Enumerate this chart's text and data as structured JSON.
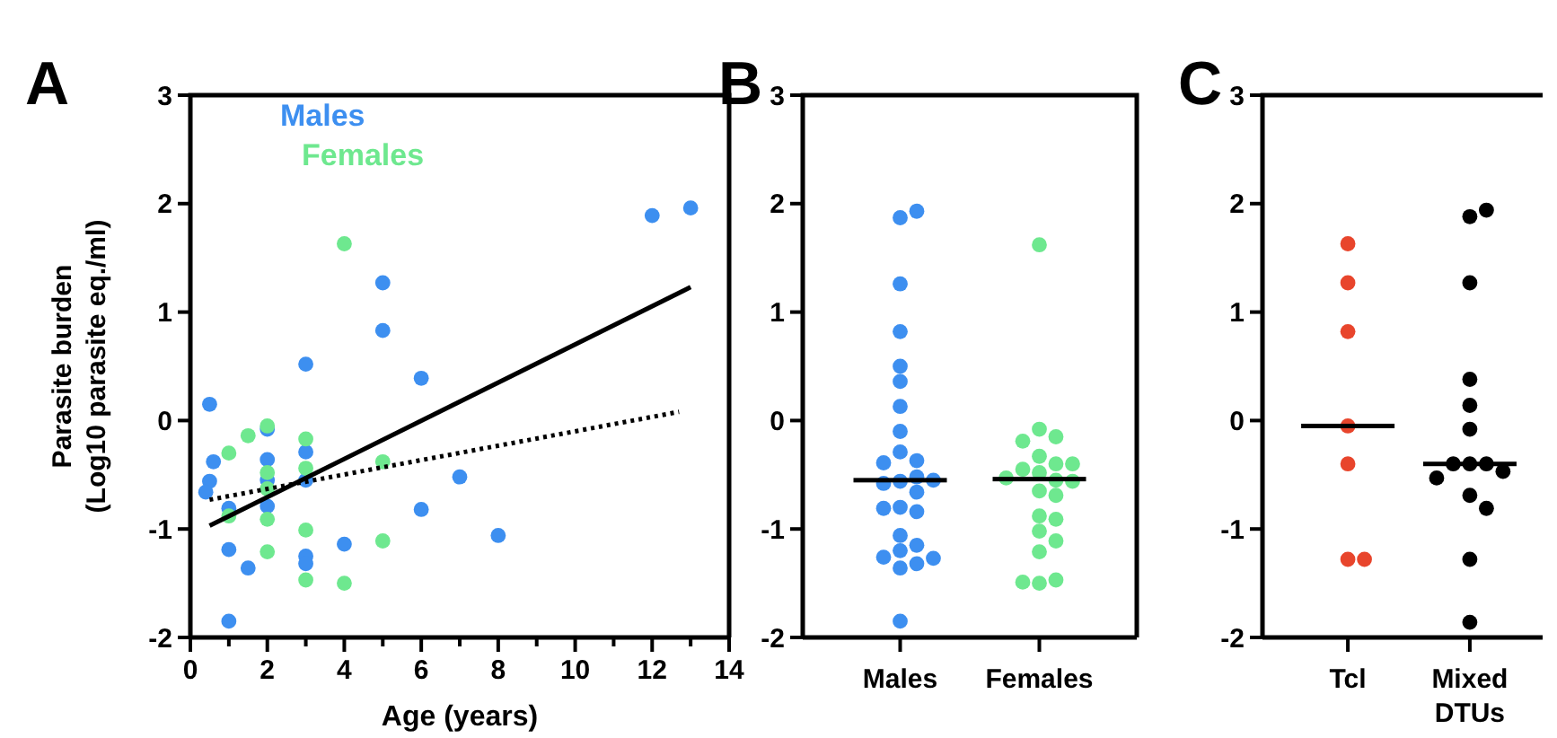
{
  "chart_data": [
    {
      "type": "scatter",
      "title": "A",
      "xlabel": "Age (years)",
      "ylabel": "Parasite burden\n(Log10 parasite eq./ml)",
      "xlim": [
        0,
        14
      ],
      "ylim": [
        -2,
        3
      ],
      "xticks": [
        0,
        {
          "value": 1,
          "label": null
        },
        2,
        {
          "value": 3,
          "label": null
        },
        4,
        {
          "value": 5,
          "label": null
        },
        6,
        {
          "value": 7,
          "label": null
        },
        8,
        {
          "value": 9,
          "label": null
        },
        10,
        {
          "value": 11,
          "label": null
        },
        12,
        {
          "value": 13,
          "label": null
        },
        14
      ],
      "yticks": [
        -2,
        -1,
        0,
        1,
        2,
        3
      ],
      "legend": "top left",
      "marker": "circle",
      "series": [
        {
          "name": "Males",
          "color": "#3d8ff0",
          "x": [
            0.5,
            0.6,
            0.5,
            0.4,
            1,
            1,
            1.5,
            1,
            2,
            2,
            2,
            2,
            3,
            3,
            3,
            3,
            3,
            4,
            5,
            5,
            6,
            6,
            7,
            8,
            12,
            13
          ],
          "values": [
            0.15,
            -0.38,
            -0.56,
            -0.66,
            -0.81,
            -1.19,
            -1.36,
            -1.85,
            -0.08,
            -0.36,
            -0.55,
            -0.79,
            0.52,
            -0.29,
            -0.55,
            -1.25,
            -1.32,
            -1.14,
            1.27,
            0.83,
            0.39,
            -0.82,
            -0.52,
            -1.06,
            1.89,
            1.96
          ]
        },
        {
          "name": "Females",
          "color": "#6ee88f",
          "x": [
            1,
            1.5,
            1,
            2,
            2,
            2,
            2,
            2,
            3,
            3,
            3,
            3,
            4,
            4,
            5,
            5
          ],
          "values": [
            -0.3,
            -0.14,
            -0.88,
            -0.05,
            -0.48,
            -0.63,
            -0.91,
            -1.21,
            -0.17,
            -0.44,
            -1.01,
            -1.47,
            1.63,
            -1.5,
            -0.38,
            -1.11
          ]
        },
        {
          "type": "line",
          "color": "#000000",
          "line_style": "solid",
          "marker": "none",
          "x": [
            0.5,
            13
          ],
          "values": [
            -0.97,
            1.23
          ]
        },
        {
          "type": "line",
          "color": "#000000",
          "line_style": "dotted",
          "marker": "none",
          "x": [
            0.5,
            12.7
          ],
          "values": [
            -0.73,
            0.08
          ]
        }
      ]
    },
    {
      "type": "scatter",
      "title": "B",
      "categories": [
        "Males",
        "Females"
      ],
      "ylim": [
        -2,
        3
      ],
      "yticks": [
        -2,
        -1,
        0,
        1,
        2,
        3
      ],
      "marker": "circle",
      "series": [
        {
          "color": "#3d8ff0",
          "x": [
            "Males",
            "Males",
            "Males",
            "Males",
            "Males",
            "Males",
            "Males",
            "Males",
            "Males",
            "Males",
            "Males",
            "Males",
            "Males",
            "Males",
            "Males",
            "Males",
            "Males",
            "Males",
            "Males",
            "Males",
            "Males",
            "Males",
            "Males",
            "Males",
            "Males",
            "Males",
            "Males"
          ],
          "values": [
            1.87,
            1.93,
            1.26,
            0.82,
            0.5,
            0.36,
            0.13,
            -0.1,
            -0.29,
            -0.37,
            -0.39,
            -0.56,
            -0.52,
            -0.58,
            -0.55,
            -0.66,
            -0.8,
            -0.84,
            -0.81,
            -1.06,
            -1.15,
            -1.2,
            -1.26,
            -1.32,
            -1.36,
            -1.27,
            -1.85
          ]
        },
        {
          "color": "#6ee88f",
          "x": [
            "Females",
            "Females",
            "Females",
            "Females",
            "Females",
            "Females",
            "Females",
            "Females",
            "Females",
            "Females",
            "Females",
            "Females",
            "Females",
            "Females",
            "Females",
            "Females",
            "Females",
            "Females",
            "Females",
            "Females",
            "Females",
            "Females"
          ],
          "values": [
            1.62,
            -0.08,
            -0.15,
            -0.19,
            -0.33,
            -0.4,
            -0.45,
            -0.4,
            -0.48,
            -0.55,
            -0.53,
            -0.56,
            -0.65,
            -0.69,
            -0.88,
            -0.91,
            -1.02,
            -1.11,
            -1.21,
            -1.5,
            -1.47,
            -1.49
          ]
        },
        {
          "type": "box",
          "color": "#000000",
          "boxes": [
            {
              "low": -0.55,
              "q1": -0.55,
              "median": -0.55,
              "q3": -0.55,
              "high": -0.55
            },
            {
              "low": -0.54,
              "q1": -0.54,
              "median": -0.54,
              "q3": -0.54,
              "high": -0.54
            }
          ]
        }
      ]
    },
    {
      "type": "scatter",
      "title": "C",
      "categories": [
        "Tcl",
        "Mixed\nDTUs"
      ],
      "ylim": [
        -2,
        3
      ],
      "yticks": [
        -2,
        -1,
        0,
        1,
        2,
        3
      ],
      "marker": "circle",
      "series": [
        {
          "color": "#e8452c",
          "x": [
            "Tcl",
            "Tcl",
            "Tcl",
            "Tcl",
            "Tcl",
            "Tcl",
            "Tcl"
          ],
          "values": [
            1.63,
            1.27,
            0.82,
            -0.05,
            -0.4,
            -1.28,
            -1.28
          ]
        },
        {
          "color": "#000000",
          "x": [
            "Mixed\nDTUs",
            "Mixed\nDTUs",
            "Mixed\nDTUs",
            "Mixed\nDTUs",
            "Mixed\nDTUs",
            "Mixed\nDTUs",
            "Mixed\nDTUs",
            "Mixed\nDTUs",
            "Mixed\nDTUs",
            "Mixed\nDTUs",
            "Mixed\nDTUs",
            "Mixed\nDTUs",
            "Mixed\nDTUs",
            "Mixed\nDTUs",
            "Mixed\nDTUs"
          ],
          "values": [
            1.88,
            1.94,
            1.27,
            0.38,
            0.14,
            -0.08,
            -0.4,
            -0.4,
            -0.4,
            -0.47,
            -0.53,
            -0.69,
            -0.81,
            -1.28,
            -1.86
          ]
        },
        {
          "type": "box",
          "color": "#000000",
          "boxes": [
            {
              "low": -0.05,
              "q1": -0.05,
              "median": -0.05,
              "q3": -0.05,
              "high": -0.05
            },
            {
              "low": -0.4,
              "q1": -0.4,
              "median": -0.4,
              "q3": -0.4,
              "high": -0.4
            }
          ]
        }
      ]
    }
  ]
}
